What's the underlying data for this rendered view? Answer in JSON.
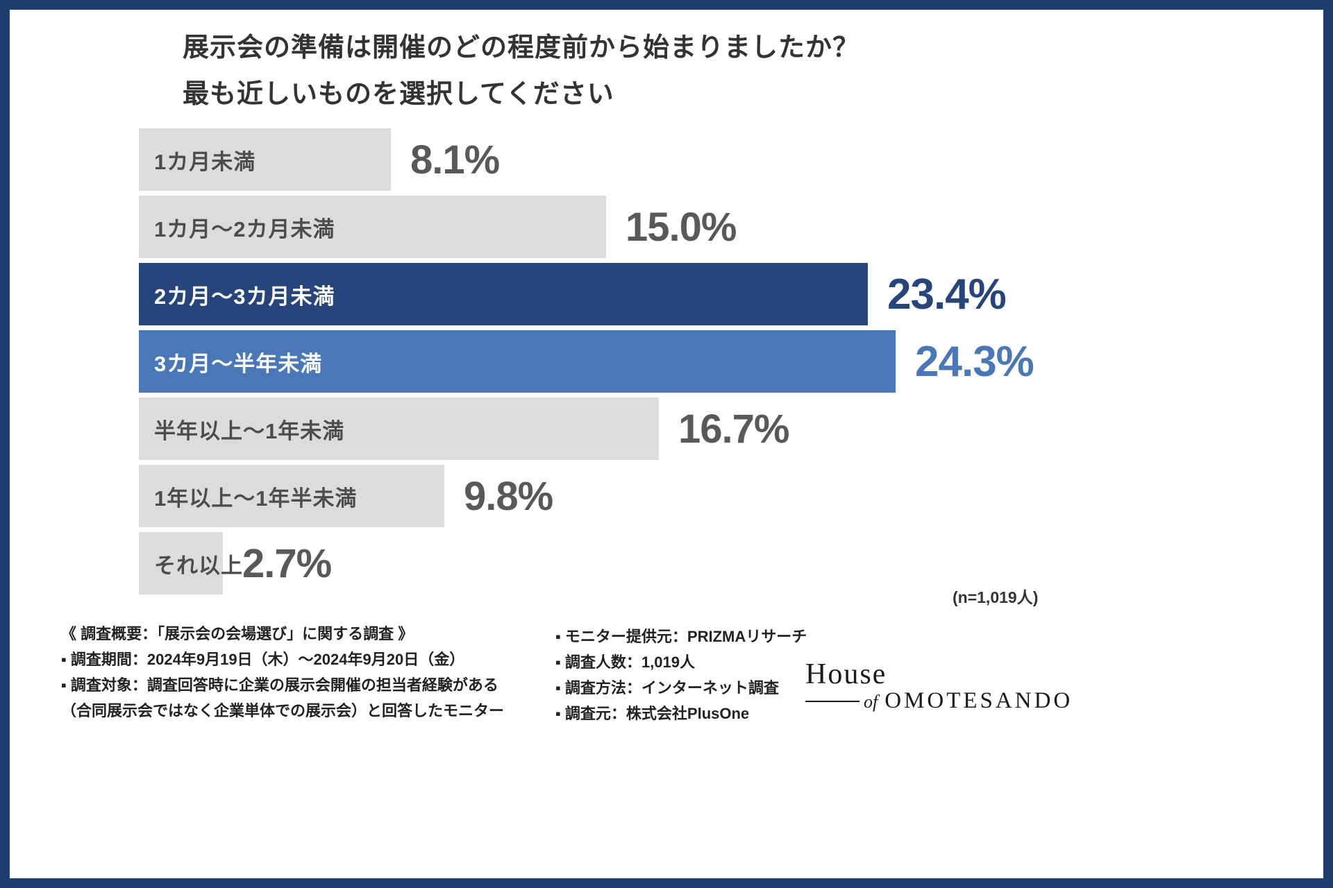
{
  "title": {
    "line1": "展示会の準備は開催のどの程度前から始まりましたか？",
    "line2": "最も近しいものを選択してください"
  },
  "sample_note": "(n=1,019人)",
  "chart_data": {
    "type": "bar",
    "orientation": "horizontal",
    "title": "展示会の準備は開催のどの程度前から始まりましたか？ 最も近しいものを選択してください",
    "categories": [
      "1カ月未満",
      "1カ月〜2カ月未満",
      "2カ月〜3カ月未満",
      "3カ月〜半年未満",
      "半年以上〜1年未満",
      "1年以上〜1年半未満",
      "それ以上"
    ],
    "values": [
      8.1,
      15.0,
      23.4,
      24.3,
      16.7,
      9.8,
      2.7
    ],
    "value_labels": [
      "8.1%",
      "15.0%",
      "23.4%",
      "24.3%",
      "16.7%",
      "9.8%",
      "2.7%"
    ],
    "xlim": [
      0,
      24.3
    ],
    "grid": false,
    "legend": false,
    "n_label": "(n=1,019人)",
    "bars": [
      {
        "label": "1カ月未満",
        "value": 8.1,
        "display": "8.1%",
        "style": "gray"
      },
      {
        "label": "1カ月〜2カ月未満",
        "value": 15.0,
        "display": "15.0%",
        "style": "gray"
      },
      {
        "label": "2カ月〜3カ月未満",
        "value": 23.4,
        "display": "23.4%",
        "style": "dark"
      },
      {
        "label": "3カ月〜半年未満",
        "value": 24.3,
        "display": "24.3%",
        "style": "mid"
      },
      {
        "label": "半年以上〜1年未満",
        "value": 16.7,
        "display": "16.7%",
        "style": "gray"
      },
      {
        "label": "1年以上〜1年半未満",
        "value": 9.8,
        "display": "9.8%",
        "style": "gray"
      },
      {
        "label": "それ以上",
        "value": 2.7,
        "display": "2.7%",
        "style": "gray"
      }
    ]
  },
  "survey_overview": {
    "left_lines": [
      "《 調査概要：「展示会の会場選び」に関する調査 》",
      "▪ 調査期間：2024年9月19日（木）〜2024年9月20日（金）",
      "▪ 調査対象：調査回答時に企業の展示会開催の担当者経験がある",
      "（合同展示会ではなく企業単体での展示会）と回答したモニター"
    ],
    "right_lines": [
      "▪ モニター提供元：PRIZMAリサーチ",
      "▪ 調査人数：1,019人",
      "▪ 調査方法：インターネット調査",
      "▪ 調査元：株式会社PlusOne"
    ]
  },
  "logo": {
    "word1": "House",
    "word2": "of",
    "word3": "OMOTESANDO"
  },
  "colors": {
    "frame": "#1e3e6f",
    "bar_gray": "#dcdcdc",
    "bar_dark": "#27457a",
    "bar_mid": "#4a77b8",
    "pct_gray": "#595959",
    "label_gray": "#4d4d4d",
    "title_text": "#333333"
  }
}
